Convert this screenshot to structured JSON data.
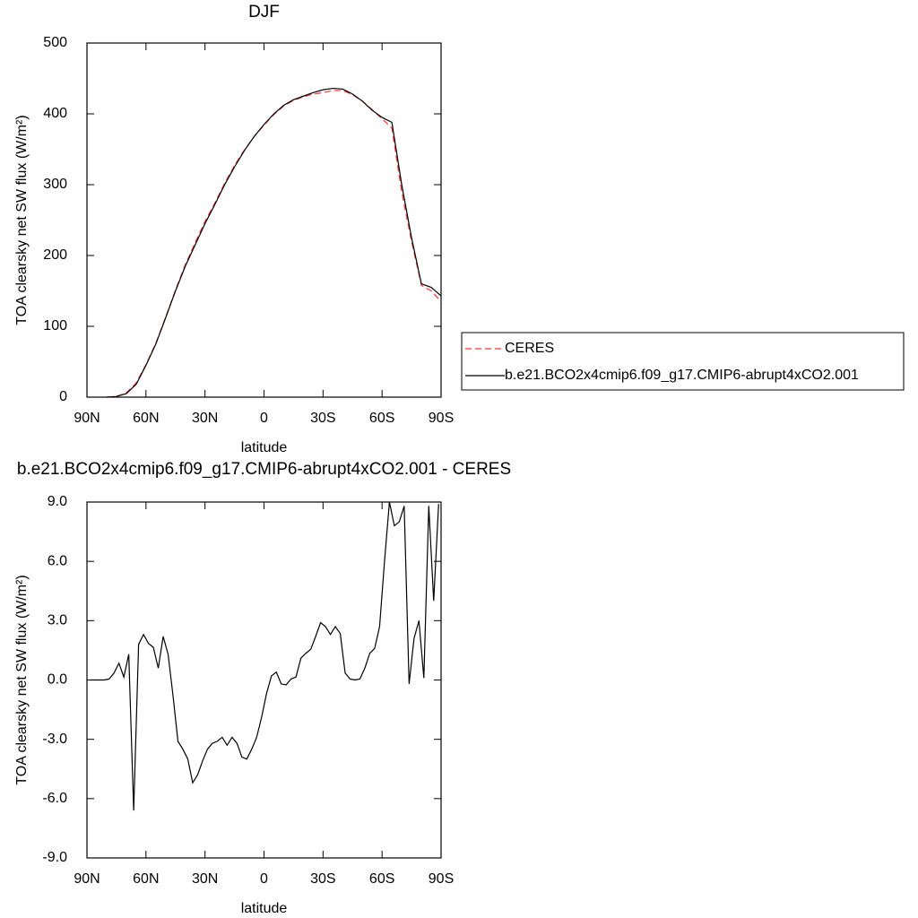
{
  "chart_data": [
    {
      "type": "line",
      "title": "DJF",
      "xlabel": "latitude",
      "ylabel": "TOA clearsky net SW flux (W/m²)",
      "x": [
        80,
        75,
        70,
        65,
        60,
        55,
        50,
        45,
        40,
        35,
        30,
        25,
        20,
        15,
        10,
        5,
        0,
        -5,
        -10,
        -15,
        -20,
        -25,
        -30,
        -35,
        -40,
        -45,
        -50,
        -55,
        -60,
        -65,
        -70,
        -75,
        -80,
        -85,
        -90
      ],
      "series": [
        {
          "name": "CERES",
          "color": "#ff3030",
          "dashed": true,
          "values": [
            0,
            1,
            6,
            20,
            46,
            76,
            113,
            151,
            187,
            218,
            248,
            274,
            302,
            327,
            349,
            368,
            384,
            399,
            411,
            419,
            424,
            428,
            430,
            433,
            433,
            427,
            418,
            406,
            393,
            380,
            290,
            220,
            158,
            150,
            135
          ]
        },
        {
          "name": "b.e21.BCO2x4cmip6.f09_g17.CMIP6-abrupt4xCO2.001",
          "color": "#000000",
          "dashed": false,
          "values": [
            0,
            1,
            5,
            18,
            45,
            75,
            112,
            150,
            185,
            215,
            245,
            272,
            300,
            325,
            348,
            368,
            385,
            400,
            412,
            420,
            425,
            430,
            434,
            436,
            435,
            428,
            418,
            405,
            395,
            388,
            300,
            225,
            160,
            155,
            143
          ]
        }
      ],
      "xlim": [
        90,
        -90
      ],
      "xticks": [
        {
          "value": 90,
          "label": "90N"
        },
        {
          "value": 60,
          "label": "60N"
        },
        {
          "value": 30,
          "label": "30N"
        },
        0,
        {
          "value": -30,
          "label": "30S"
        },
        {
          "value": -60,
          "label": "60S"
        },
        {
          "value": -90,
          "label": "90S"
        }
      ],
      "ylim": [
        0,
        500
      ],
      "yticks": [
        0,
        100,
        200,
        300,
        400,
        500
      ],
      "legend": "right"
    },
    {
      "type": "line",
      "title": "b.e21.BCO2x4cmip6.f09_g17.CMIP6-abrupt4xCO2.001 - CERES",
      "xlabel": "latitude",
      "ylabel": "TOA clearsky net SW flux (W/m²)",
      "x": [
        88.75,
        86.25,
        83.75,
        81.25,
        78.75,
        76.25,
        73.75,
        71.25,
        68.75,
        66.25,
        63.75,
        61.25,
        58.75,
        56.25,
        53.75,
        51.25,
        48.75,
        46.25,
        43.75,
        41.25,
        38.75,
        36.25,
        33.75,
        31.25,
        28.75,
        26.25,
        23.75,
        21.25,
        18.75,
        16.25,
        13.75,
        11.25,
        8.75,
        6.25,
        3.75,
        1.25,
        -1.25,
        -3.75,
        -6.25,
        -8.75,
        -11.25,
        -13.75,
        -16.25,
        -18.75,
        -21.25,
        -23.75,
        -26.25,
        -28.75,
        -31.25,
        -33.75,
        -36.25,
        -38.75,
        -41.25,
        -43.75,
        -46.25,
        -48.75,
        -51.25,
        -53.75,
        -56.25,
        -58.75,
        -61.25,
        -63.75,
        -66.25,
        -68.75,
        -71.25,
        -73.75,
        -76.25,
        -78.75,
        -81.25,
        -83.75,
        -86.25,
        -88.75
      ],
      "series": [
        {
          "name": "b.e21.BCO2x4cmip6.f09_g17.CMIP6-abrupt4xCO2.001 - CERES",
          "color": "#000000",
          "dashed": false,
          "values": [
            0,
            0,
            0,
            0,
            0.05,
            0.35,
            0.85,
            0.15,
            1.3,
            -6.6,
            1.8,
            2.3,
            1.85,
            1.65,
            0.6,
            2.2,
            1.3,
            -0.8,
            -3.1,
            -3.5,
            -4.0,
            -5.2,
            -4.8,
            -4.1,
            -3.5,
            -3.2,
            -3.1,
            -2.9,
            -3.3,
            -2.9,
            -3.2,
            -3.9,
            -4.0,
            -3.5,
            -2.9,
            -1.9,
            -0.7,
            0.2,
            0.4,
            -0.2,
            -0.25,
            0.05,
            0.15,
            1.1,
            1.35,
            1.55,
            2.2,
            2.9,
            2.7,
            2.3,
            2.7,
            2.35,
            0.35,
            0.05,
            0,
            0.05,
            0.6,
            1.35,
            1.6,
            2.7,
            6.0,
            9.0,
            7.8,
            8.0,
            8.8,
            -0.2,
            2.1,
            3.0,
            0.1,
            8.8,
            4.0,
            8.9
          ]
        }
      ],
      "xlim": [
        90,
        -90
      ],
      "xticks": [
        {
          "value": 90,
          "label": "90N"
        },
        {
          "value": 60,
          "label": "60N"
        },
        {
          "value": 30,
          "label": "30N"
        },
        0,
        {
          "value": -30,
          "label": "30S"
        },
        {
          "value": -60,
          "label": "60S"
        },
        {
          "value": -90,
          "label": "90S"
        }
      ],
      "ylim": [
        -9,
        9
      ],
      "yticks": [
        {
          "value": -9,
          "label": "-9.0"
        },
        {
          "value": -6,
          "label": "-6.0"
        },
        {
          "value": -3,
          "label": "-3.0"
        },
        {
          "value": 0,
          "label": "0.0"
        },
        {
          "value": 3,
          "label": "3.0"
        },
        {
          "value": 6,
          "label": "6.0"
        },
        {
          "value": 9,
          "label": "9.0"
        }
      ]
    }
  ]
}
